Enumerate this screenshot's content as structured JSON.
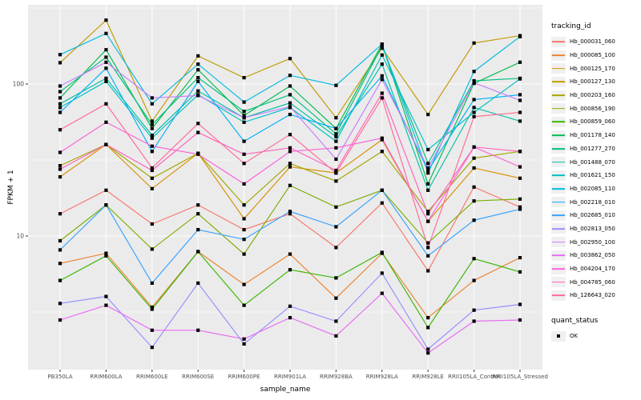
{
  "chart_data": {
    "type": "line",
    "title": "",
    "xlabel": "sample_name",
    "ylabel": "FPKM + 1",
    "y_scale": "log10",
    "ylim": [
      1.3,
      335
    ],
    "y_major_ticks": [
      {
        "label": "100",
        "value": 100
      },
      {
        "label": "10",
        "value": 10
      }
    ],
    "y_minor_values": [
      3.1623,
      31.623,
      316.23
    ],
    "grid": true,
    "legend_position": "right",
    "legend_title": "tracking_id",
    "quant_legend_title": "quant_status",
    "quant_status_label": "OK",
    "point_shape": "square",
    "point_color": "#000000",
    "panel_bg": "#EBEBEB",
    "grid_color": "#FFFFFF",
    "axis_text_color": "#4D4D4D",
    "categories": [
      "PB350LA",
      "RRIM600LA",
      "RRIM600LE",
      "RRIM600SE",
      "RRIM600PE",
      "RRIM901LA",
      "RRIM928BA",
      "RRIM928LA",
      "RRIM928LE",
      "RRII105LA_Control",
      "RRII105LA_Stressed"
    ],
    "series": [
      {
        "name": "Hb_000031_060",
        "color": "#F8766D",
        "values": [
          14,
          20,
          12,
          16,
          11,
          14,
          8.4,
          16.5,
          5.9,
          21,
          15.5
        ]
      },
      {
        "name": "Hb_000085_100",
        "color": "#EA8331",
        "values": [
          6.6,
          7.7,
          3.4,
          7.9,
          4.8,
          7.6,
          3.9,
          7.7,
          2.9,
          5.1,
          7.2
        ]
      },
      {
        "name": "Hb_000125_170",
        "color": "#D89000",
        "values": [
          24.5,
          40,
          20.5,
          35,
          13,
          28.5,
          26,
          43,
          12.5,
          28,
          24
        ]
      },
      {
        "name": "Hb_000127_130",
        "color": "#C09B00",
        "values": [
          138,
          263,
          57,
          153,
          110,
          147,
          60,
          172,
          63,
          186,
          208
        ]
      },
      {
        "name": "Hb_000203_160",
        "color": "#A3A500",
        "values": [
          29,
          40,
          24,
          35,
          16,
          30,
          23,
          36,
          14.5,
          32.5,
          36
        ]
      },
      {
        "name": "Hb_000856_190",
        "color": "#7CAE00",
        "values": [
          9.3,
          16,
          8.2,
          14,
          7.6,
          21.5,
          15.5,
          20,
          9,
          17,
          17.5
        ]
      },
      {
        "name": "Hb_000859_060",
        "color": "#39B600",
        "values": [
          5.1,
          7.4,
          3.3,
          7.9,
          3.5,
          6.0,
          5.3,
          7.8,
          2.5,
          7.1,
          5.8
        ]
      },
      {
        "name": "Hb_001178_140",
        "color": "#00BB4E",
        "values": [
          81,
          168,
          51,
          124,
          62,
          97,
          51,
          183,
          22,
          101,
          139
        ]
      },
      {
        "name": "Hb_001277_270",
        "color": "#00BF7D",
        "values": [
          89,
          150,
          54,
          110,
          66,
          85,
          47,
          178,
          30,
          105,
          109
        ]
      },
      {
        "name": "Hb_001488_070",
        "color": "#00C1A3",
        "values": [
          74,
          109,
          46,
          90,
          60,
          75,
          45,
          135,
          20,
          70,
          57
        ]
      },
      {
        "name": "Hb_001621_150",
        "color": "#00BFC4",
        "values": [
          70,
          104,
          44,
          85,
          56,
          70,
          42,
          155,
          37,
          65,
          108
        ]
      },
      {
        "name": "Hb_002085_110",
        "color": "#00BAE0",
        "values": [
          156,
          215,
          74,
          135,
          76,
          114,
          98,
          183,
          26,
          121,
          205
        ]
      },
      {
        "name": "Hb_002218_010",
        "color": "#00B0F6",
        "values": [
          65,
          127,
          36,
          104,
          42,
          63,
          51,
          113,
          27,
          79,
          85
        ]
      },
      {
        "name": "Hb_002685_010",
        "color": "#35A2FF",
        "values": [
          8.1,
          16,
          4.9,
          11,
          9.5,
          14.5,
          11.5,
          20,
          7.4,
          12.7,
          15
        ]
      },
      {
        "name": "Hb_002813_050",
        "color": "#9590FF",
        "values": [
          3.6,
          4.0,
          1.85,
          4.9,
          1.95,
          3.45,
          2.75,
          5.7,
          1.8,
          3.25,
          3.55
        ]
      },
      {
        "name": "Hb_002950_100",
        "color": "#C77CFF",
        "values": [
          97,
          139,
          81,
          84,
          60,
          71,
          32,
          107,
          28,
          102,
          78
        ]
      },
      {
        "name": "Hb_003862_050",
        "color": "#E76BF3",
        "values": [
          2.8,
          3.5,
          2.4,
          2.4,
          2.1,
          2.9,
          2.2,
          4.2,
          1.7,
          2.75,
          2.8
        ]
      },
      {
        "name": "Hb_004204_170",
        "color": "#FA62DB",
        "values": [
          35.5,
          56,
          39,
          34.5,
          22,
          36,
          38,
          44,
          12.5,
          38.5,
          28.5
        ]
      },
      {
        "name": "Hb_004785_060",
        "color": "#FF62BC",
        "values": [
          27.5,
          40,
          27,
          48,
          34.5,
          38,
          27,
          87,
          14,
          38.5,
          36
        ]
      },
      {
        "name": "Hb_126643_020",
        "color": "#FF6A98",
        "values": [
          50,
          74,
          28,
          55,
          30,
          46.5,
          26,
          81,
          8.4,
          61,
          65
        ]
      }
    ]
  }
}
